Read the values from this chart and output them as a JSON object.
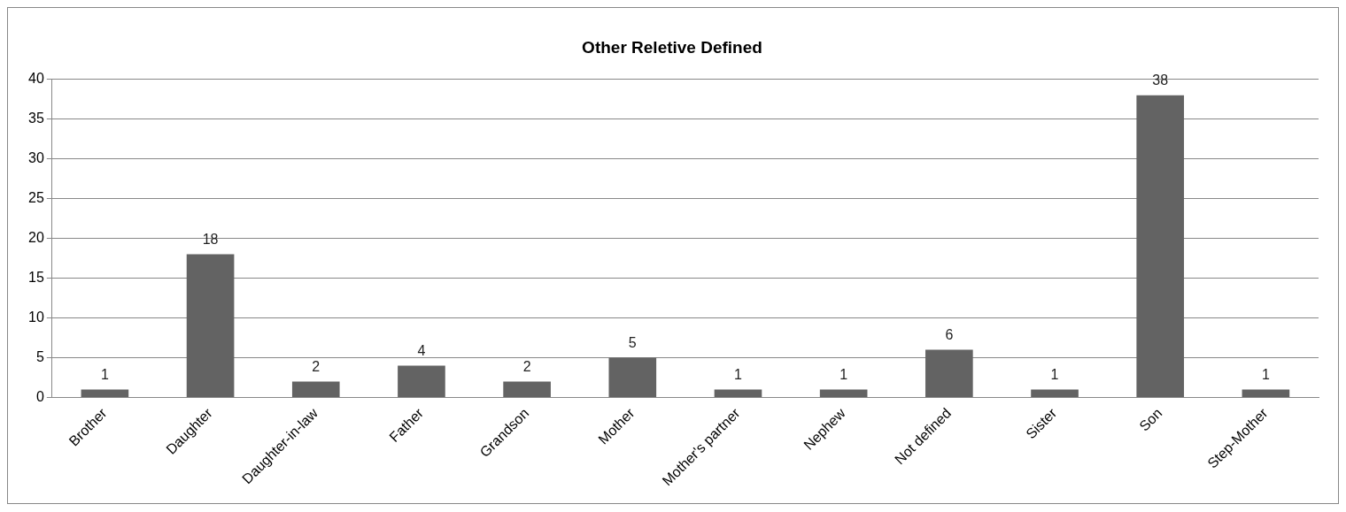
{
  "chart_data": {
    "type": "bar",
    "title": "Other Reletive Defined",
    "categories": [
      "Brother",
      "Daughter",
      "Daughter-in-law",
      "Father",
      "Grandson",
      "Mother",
      "Mother's partner",
      "Nephew",
      "Not defined",
      "Sister",
      "Son",
      "Step-Mother"
    ],
    "values": [
      1,
      18,
      2,
      4,
      2,
      5,
      1,
      1,
      6,
      1,
      38,
      1
    ],
    "color": "#636363",
    "ylim": [
      0,
      40
    ],
    "yticks": [
      0,
      5,
      10,
      15,
      20,
      25,
      30,
      35,
      40
    ],
    "grid": "y",
    "legend": false,
    "data_labels": true
  }
}
